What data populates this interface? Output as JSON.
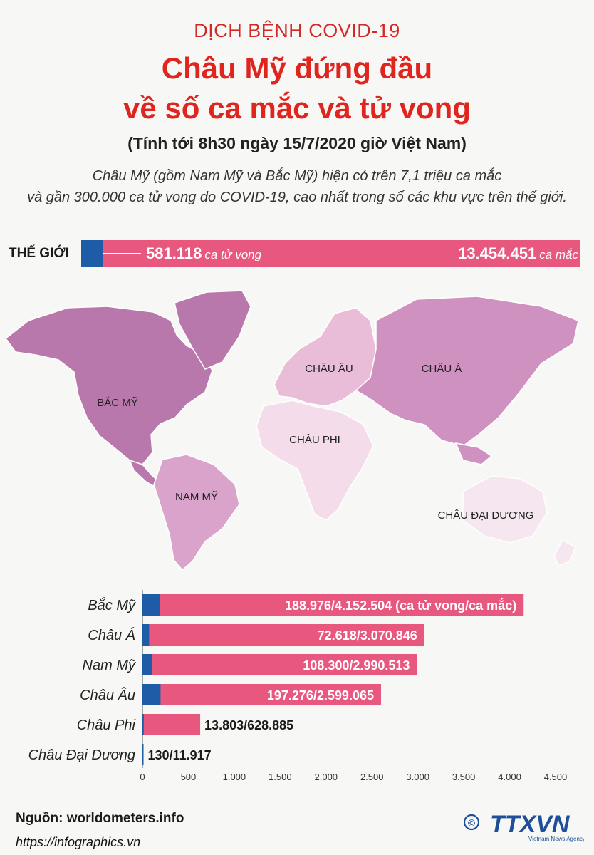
{
  "header": {
    "kicker": "DỊCH BỆNH COVID-19",
    "title_line1": "Châu Mỹ đứng đầu",
    "title_line2": "về số ca mắc và tử vong",
    "as_of": "(Tính tới 8h30 ngày 15/7/2020 giờ Việt Nam)",
    "intro_line1": "Châu Mỹ (gồm Nam Mỹ và Bắc Mỹ) hiện có trên 7,1 triệu ca mắc",
    "intro_line2": "và gần 300.000 ca tử vong do COVID-19, cao nhất trong số các khu vực trên thế giới."
  },
  "world": {
    "label": "THẾ GIỚI",
    "deaths": "581.118",
    "deaths_unit": "ca tử vong",
    "cases": "13.454.451",
    "cases_unit": "ca mắc"
  },
  "map": {
    "regions": [
      {
        "key": "north-america",
        "label": "BẮC MỸ",
        "color": "#b978ac"
      },
      {
        "key": "south-america",
        "label": "NAM MỸ",
        "color": "#d9a3cb"
      },
      {
        "key": "europe",
        "label": "CHÂU ÂU",
        "color": "#e9bcd8"
      },
      {
        "key": "asia",
        "label": "CHÂU Á",
        "color": "#cf91c0"
      },
      {
        "key": "africa",
        "label": "CHÂU PHI",
        "color": "#f4dcea"
      },
      {
        "key": "oceania",
        "label": "CHÂU ĐẠI DƯƠNG",
        "color": "#f6e6ef"
      }
    ]
  },
  "chart_data": {
    "type": "bar",
    "orientation": "horizontal",
    "stacked_overlay": true,
    "categories": [
      "Bắc Mỹ",
      "Châu Á",
      "Nam Mỹ",
      "Châu Âu",
      "Châu Phi",
      "Châu Đại Dương"
    ],
    "series": [
      {
        "name": "ca tử vong",
        "values": [
          188.976,
          72.618,
          108.3,
          197.276,
          13.803,
          0.13
        ],
        "color": "#1f5ca8"
      },
      {
        "name": "ca mắc",
        "values": [
          4152.504,
          3070.846,
          2990.513,
          2599.065,
          628.885,
          11.917
        ],
        "color": "#e8577e"
      }
    ],
    "value_labels": [
      "188.976/4.152.504 (ca tử vong/ca mắc)",
      "72.618/3.070.846",
      "108.300/2.990.513",
      "197.276/2.599.065",
      "13.803/628.885",
      "130/11.917"
    ],
    "xlim": [
      0,
      4500
    ],
    "xticks": [
      0,
      500,
      1000,
      1500,
      2000,
      2500,
      3000,
      3500,
      4000,
      4500
    ],
    "xtick_labels": [
      "0",
      "500",
      "1.000",
      "1.500",
      "2.000",
      "2.500",
      "3.000",
      "3.500",
      "4.000",
      "4.500"
    ]
  },
  "footer": {
    "source": "Nguồn: worldometers.info",
    "site": "https://infographics.vn",
    "logo_text": "TTXVN",
    "logo_sub": "Vietnam News Agency",
    "copyright": "©"
  }
}
